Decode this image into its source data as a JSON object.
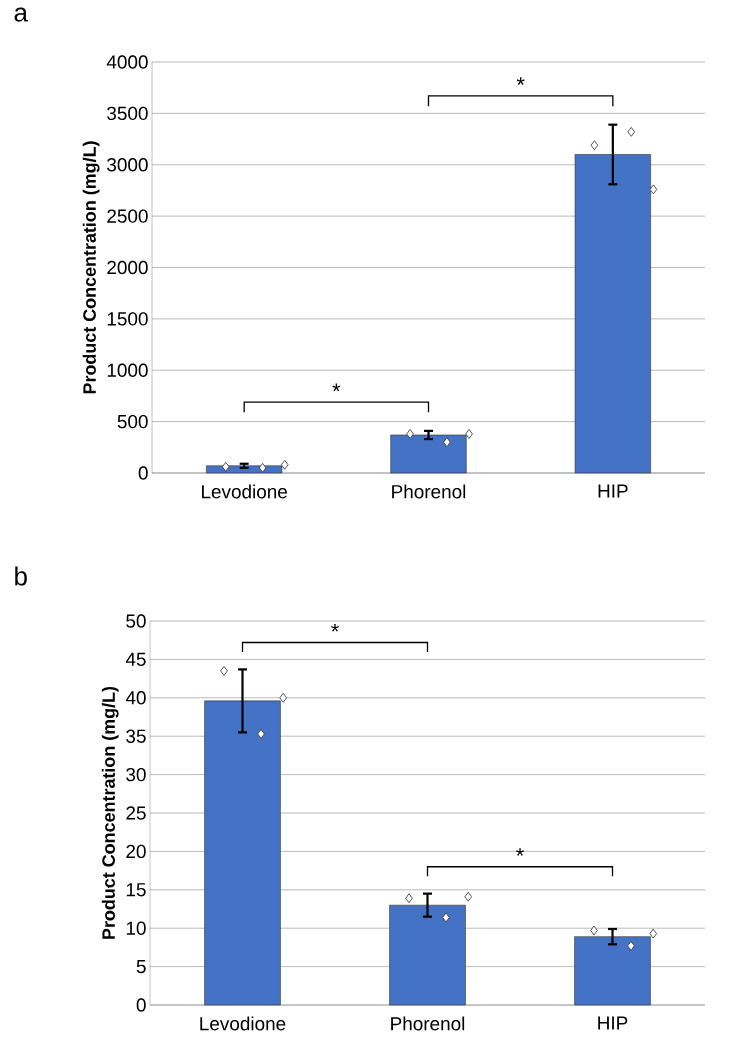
{
  "chart_data": [
    {
      "type": "bar",
      "title": "a",
      "ylabel": "Product Concentration (mg/L)",
      "categories": [
        "Levodione",
        "Phorenol",
        "HIP"
      ],
      "ylim": [
        0,
        4000
      ],
      "yticks": [
        0,
        500,
        1000,
        1500,
        2000,
        2500,
        3000,
        3500,
        4000
      ],
      "grid": "y",
      "annotations": [
        "*",
        "*"
      ],
      "series": [
        {
          "color": "#4472c4",
          "values": [
            70,
            370,
            3100
          ],
          "errors": [
            20,
            40,
            290
          ]
        },
        {
          "type": "scatter",
          "marker": "diamond",
          "color": "#ffffff",
          "x": [
            "Levodione",
            "Levodione",
            "Levodione",
            "Phorenol",
            "Phorenol",
            "Phorenol",
            "HIP",
            "HIP",
            "HIP"
          ],
          "values": [
            60,
            50,
            80,
            380,
            300,
            380,
            3190,
            3320,
            2760
          ]
        }
      ]
    },
    {
      "type": "bar",
      "title": "b",
      "ylabel": "Product Concentration (mg/L)",
      "categories": [
        "Levodione",
        "Phorenol",
        "HIP"
      ],
      "ylim": [
        0,
        50
      ],
      "yticks": [
        0,
        5,
        10,
        15,
        20,
        25,
        30,
        35,
        40,
        45,
        50
      ],
      "grid": "y",
      "annotations": [
        "*",
        "*"
      ],
      "series": [
        {
          "color": "#4472c4",
          "values": [
            39.6,
            13.0,
            8.9
          ],
          "errors": [
            4.1,
            1.5,
            1.0
          ]
        },
        {
          "type": "scatter",
          "marker": "diamond",
          "color": "#ffffff",
          "x": [
            "Levodione",
            "Levodione",
            "Levodione",
            "Phorenol",
            "Phorenol",
            "Phorenol",
            "HIP",
            "HIP",
            "HIP"
          ],
          "values": [
            43.5,
            35.3,
            40.0,
            13.9,
            11.4,
            14.1,
            9.7,
            7.7,
            9.3
          ]
        }
      ]
    }
  ]
}
